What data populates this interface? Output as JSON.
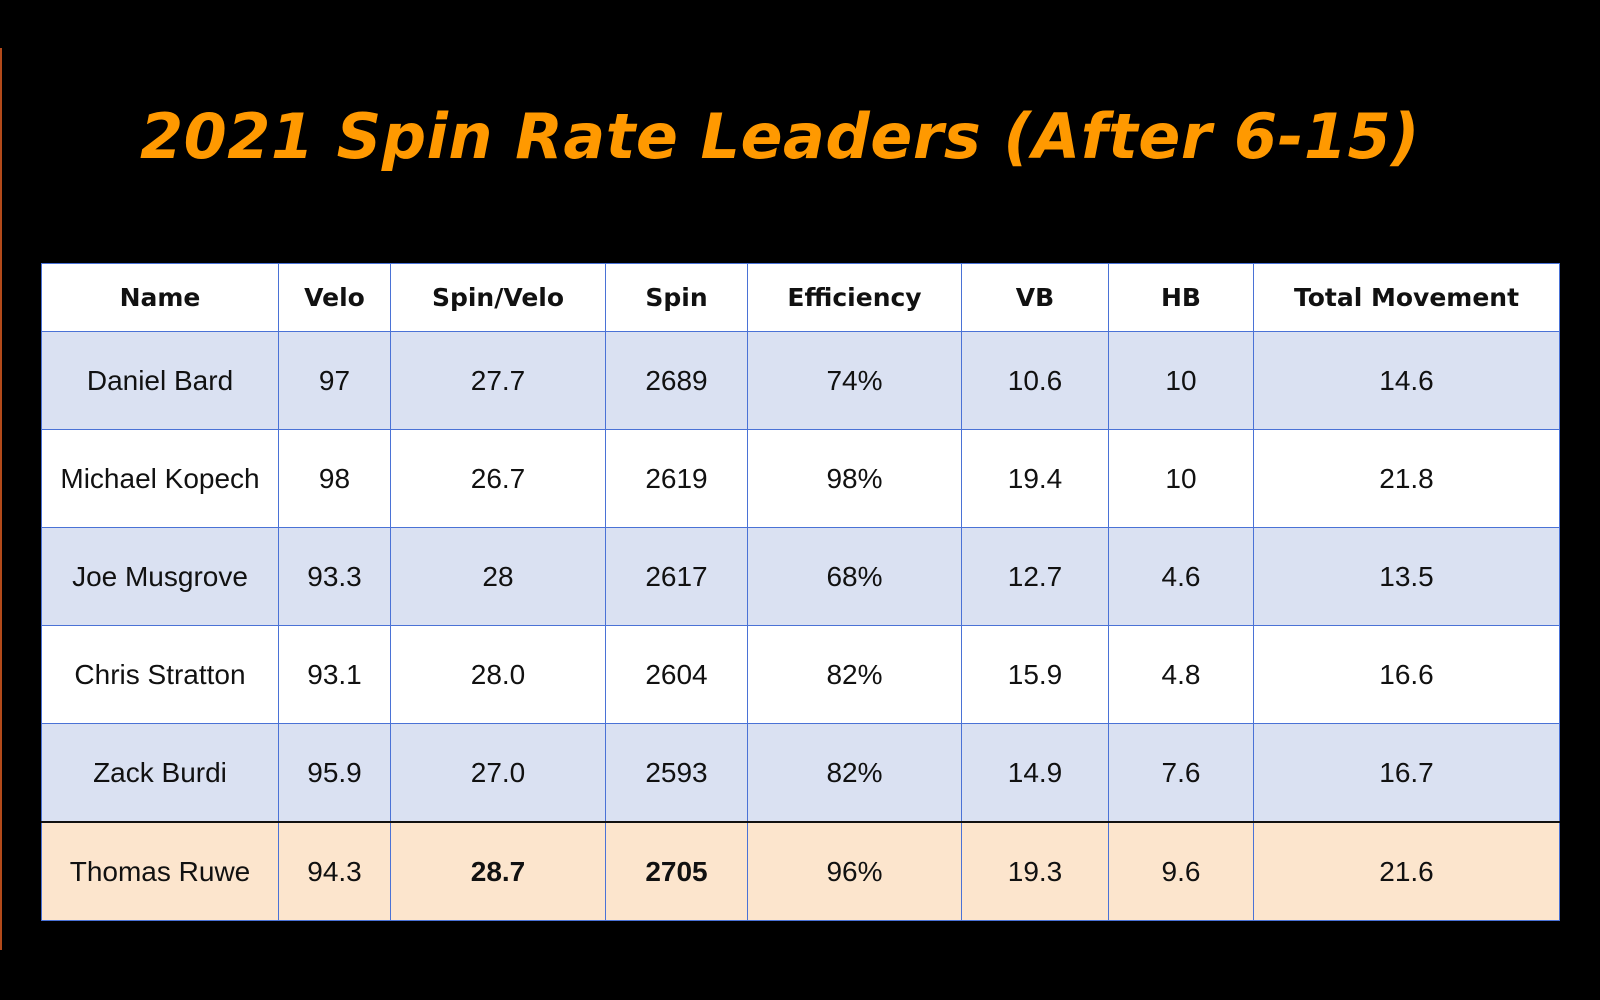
{
  "title": "2021 Spin Rate Leaders (After 6-15)",
  "colors": {
    "background": "#000000",
    "title": "#ff9900",
    "header_bg": "#ffffff",
    "row_shaded": "#dae1f2",
    "row_plain": "#ffffff",
    "row_highlight": "#fce5cd",
    "border": "#4a72d6"
  },
  "chart_data": {
    "type": "table",
    "title": "2021 Spin Rate Leaders (After 6-15)",
    "columns": [
      "Name",
      "Velo",
      "Spin/Velo",
      "Spin",
      "Efficiency",
      "VB",
      "HB",
      "Total Movement"
    ],
    "rows": [
      [
        "Daniel Bard",
        "97",
        "27.7",
        "2689",
        "74%",
        "10.6",
        "10",
        "14.6"
      ],
      [
        "Michael Kopech",
        "98",
        "26.7",
        "2619",
        "98%",
        "19.4",
        "10",
        "21.8"
      ],
      [
        "Joe Musgrove",
        "93.3",
        "28",
        "2617",
        "68%",
        "12.7",
        "4.6",
        "13.5"
      ],
      [
        "Chris Stratton",
        "93.1",
        "28.0",
        "2604",
        "82%",
        "15.9",
        "4.8",
        "16.6"
      ],
      [
        "Zack Burdi",
        "95.9",
        "27.0",
        "2593",
        "82%",
        "14.9",
        "7.6",
        "16.7"
      ],
      [
        "Thomas Ruwe",
        "94.3",
        "28.7",
        "2705",
        "96%",
        "19.3",
        "9.6",
        "21.6"
      ]
    ],
    "highlighted_row": "Thomas Ruwe",
    "bold_cells": [
      "Spin/Velo",
      "Spin"
    ]
  }
}
